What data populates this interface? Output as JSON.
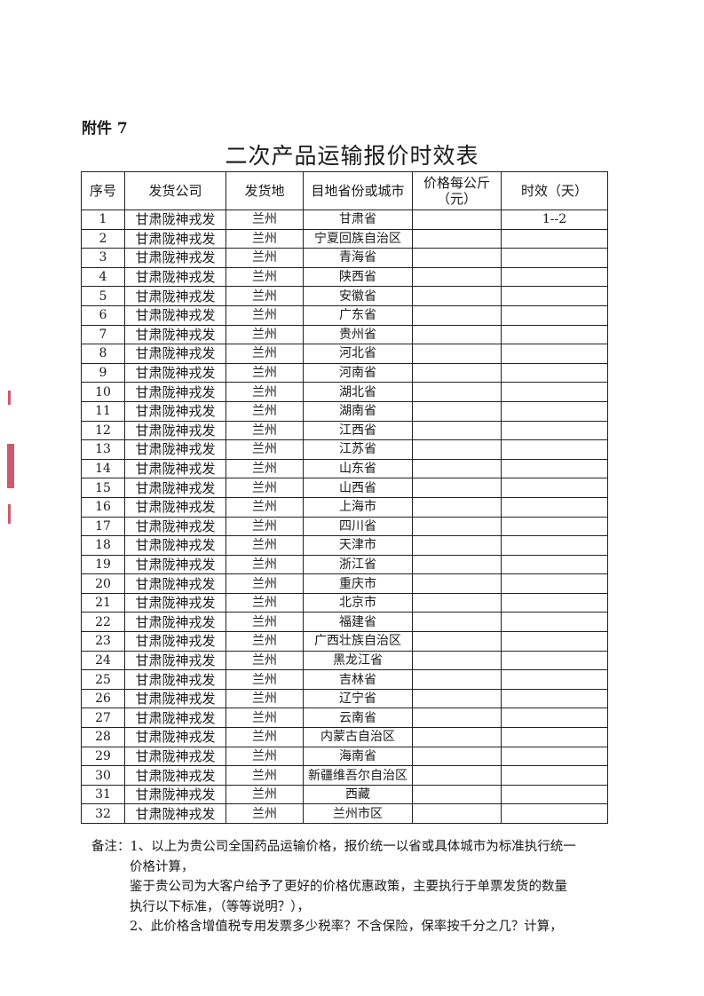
{
  "attachment_label": "附件 7",
  "title": "二次产品运输报价时效表",
  "table": {
    "headers": [
      "序号",
      "发货公司",
      "发货地",
      "目地省份或城市",
      "价格每公斤\n（元）",
      "时效（天）"
    ],
    "header_price_line1": "价格每公斤",
    "header_price_line2": "（元）",
    "rows": [
      [
        "1",
        "甘肃陇神戎发",
        "兰州",
        "甘肃省",
        "",
        "1--2"
      ],
      [
        "2",
        "甘肃陇神戎发",
        "兰州",
        "宁夏回族自治区",
        "",
        ""
      ],
      [
        "3",
        "甘肃陇神戎发",
        "兰州",
        "青海省",
        "",
        ""
      ],
      [
        "4",
        "甘肃陇神戎发",
        "兰州",
        "陕西省",
        "",
        ""
      ],
      [
        "5",
        "甘肃陇神戎发",
        "兰州",
        "安徽省",
        "",
        ""
      ],
      [
        "6",
        "甘肃陇神戎发",
        "兰州",
        "广东省",
        "",
        ""
      ],
      [
        "7",
        "甘肃陇神戎发",
        "兰州",
        "贵州省",
        "",
        ""
      ],
      [
        "8",
        "甘肃陇神戎发",
        "兰州",
        "河北省",
        "",
        ""
      ],
      [
        "9",
        "甘肃陇神戎发",
        "兰州",
        "河南省",
        "",
        ""
      ],
      [
        "10",
        "甘肃陇神戎发",
        "兰州",
        "湖北省",
        "",
        ""
      ],
      [
        "11",
        "甘肃陇神戎发",
        "兰州",
        "湖南省",
        "",
        ""
      ],
      [
        "12",
        "甘肃陇神戎发",
        "兰州",
        "江西省",
        "",
        ""
      ],
      [
        "13",
        "甘肃陇神戎发",
        "兰州",
        "江苏省",
        "",
        ""
      ],
      [
        "14",
        "甘肃陇神戎发",
        "兰州",
        "山东省",
        "",
        ""
      ],
      [
        "15",
        "甘肃陇神戎发",
        "兰州",
        "山西省",
        "",
        ""
      ],
      [
        "16",
        "甘肃陇神戎发",
        "兰州",
        "上海市",
        "",
        ""
      ],
      [
        "17",
        "甘肃陇神戎发",
        "兰州",
        "四川省",
        "",
        ""
      ],
      [
        "18",
        "甘肃陇神戎发",
        "兰州",
        "天津市",
        "",
        ""
      ],
      [
        "19",
        "甘肃陇神戎发",
        "兰州",
        "浙江省",
        "",
        ""
      ],
      [
        "20",
        "甘肃陇神戎发",
        "兰州",
        "重庆市",
        "",
        ""
      ],
      [
        "21",
        "甘肃陇神戎发",
        "兰州",
        "北京市",
        "",
        ""
      ],
      [
        "22",
        "甘肃陇神戎发",
        "兰州",
        "福建省",
        "",
        ""
      ],
      [
        "23",
        "甘肃陇神戎发",
        "兰州",
        "广西壮族自治区",
        "",
        ""
      ],
      [
        "24",
        "甘肃陇神戎发",
        "兰州",
        "黑龙江省",
        "",
        ""
      ],
      [
        "25",
        "甘肃陇神戎发",
        "兰州",
        "吉林省",
        "",
        ""
      ],
      [
        "26",
        "甘肃陇神戎发",
        "兰州",
        "辽宁省",
        "",
        ""
      ],
      [
        "27",
        "甘肃陇神戎发",
        "兰州",
        "云南省",
        "",
        ""
      ],
      [
        "28",
        "甘肃陇神戎发",
        "兰州",
        "内蒙古自治区",
        "",
        ""
      ],
      [
        "29",
        "甘肃陇神戎发",
        "兰州",
        "海南省",
        "",
        ""
      ],
      [
        "30",
        "甘肃陇神戎发",
        "兰州",
        "新疆维吾尔自治区",
        "",
        ""
      ],
      [
        "31",
        "甘肃陇神戎发",
        "兰州",
        "西藏",
        "",
        ""
      ],
      [
        "32",
        "甘肃陇神戎发",
        "兰州",
        "兰州市区",
        "",
        ""
      ]
    ]
  },
  "notes": {
    "line1": "备注：1、以上为贵公司全国药品运输价格，报价统一以省或具体城市为标准执行统一",
    "line2": "价格计算，",
    "line3": "鉴于贵公司为大客户给予了更好的价格优惠政策，主要执行于单票发货的数量",
    "line4": "执行以下标准，（等等说明？），",
    "line5": "2、此价格含增值税专用发票多少税率？不含保险，保率按千分之几？计算，"
  },
  "colors": {
    "text": "#1a1a1a",
    "margin_mark": "#c0304a"
  }
}
